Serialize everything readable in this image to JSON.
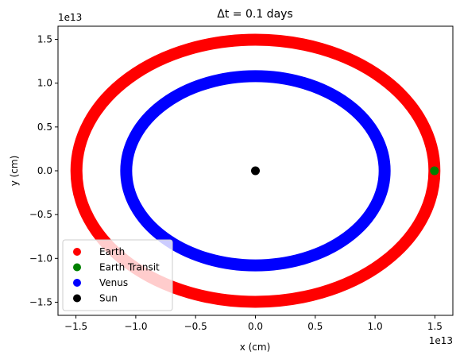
{
  "chart_data": {
    "type": "scatter",
    "title": "Δt = 0.1 days",
    "xlabel": "x (cm)",
    "ylabel": "y (cm)",
    "x_offset_label": "1e13",
    "y_offset_label": "1e13",
    "xlim": [
      -1.65,
      1.65
    ],
    "ylim": [
      -1.65,
      1.65
    ],
    "scale": "1e13",
    "xticks": [
      -1.5,
      -1.0,
      -0.5,
      0.0,
      0.5,
      1.0,
      1.5
    ],
    "yticks": [
      -1.5,
      -1.0,
      -0.5,
      0.0,
      0.5,
      1.0,
      1.5
    ],
    "xtick_labels": [
      "−1.5",
      "−1.0",
      "−0.5",
      "0.0",
      "0.5",
      "1.0",
      "1.5"
    ],
    "ytick_labels": [
      "−1.5",
      "−1.0",
      "−0.5",
      "0.0",
      "0.5",
      "1.0",
      "1.5"
    ],
    "grid": false,
    "legend_position": "lower-left",
    "series": [
      {
        "name": "Earth",
        "color": "#ff0000",
        "shape": "ellipse-orbit",
        "center": [
          0.0,
          0.0
        ],
        "semi_x": 1.496,
        "semi_y": 1.496
      },
      {
        "name": "Earth Transit",
        "color": "#008000",
        "shape": "point",
        "x": [
          1.496
        ],
        "y": [
          0.0
        ]
      },
      {
        "name": "Venus",
        "color": "#0000ff",
        "shape": "ellipse-orbit",
        "center": [
          0.0,
          0.0
        ],
        "semi_x": 1.08,
        "semi_y": 1.08
      },
      {
        "name": "Sun",
        "color": "#000000",
        "shape": "point",
        "x": [
          0.0
        ],
        "y": [
          0.0
        ]
      }
    ]
  }
}
